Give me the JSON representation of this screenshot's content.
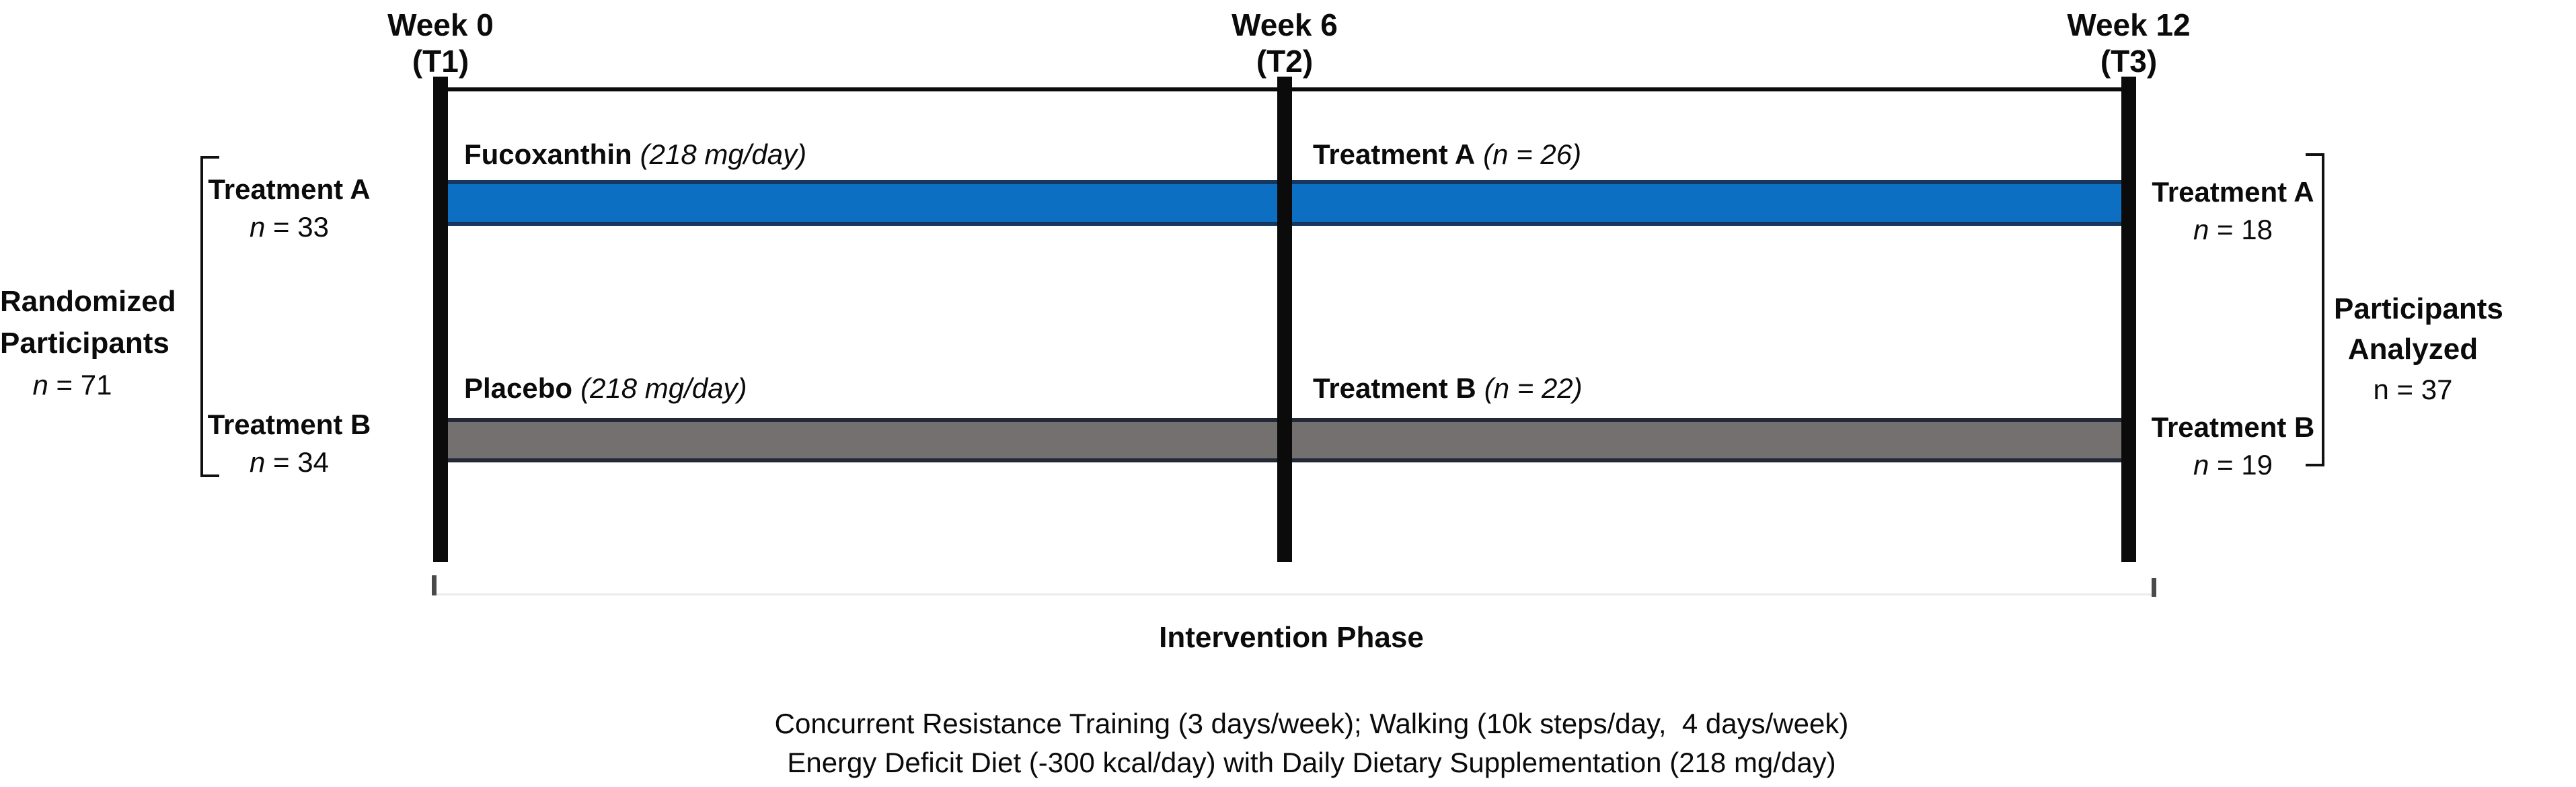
{
  "timepoints": [
    {
      "week": "Week 0",
      "timepoint": "(T1)"
    },
    {
      "week": "Week 6",
      "timepoint": "(T2)"
    },
    {
      "week": "Week 12",
      "timepoint": "(T3)"
    }
  ],
  "left_group": {
    "line1": "Randomized",
    "line2": "Participants",
    "n_italic": "n",
    "n_rest": " = 71"
  },
  "right_group": {
    "line1": "Participants",
    "line2": "Analyzed",
    "n_text": "n = 37"
  },
  "arm_a": {
    "start": {
      "label": "Treatment A",
      "n_italic": "n",
      "n_rest": " = 33"
    },
    "bar_label": {
      "name": "Fucoxanthin",
      "dose": "(218 mg/day)"
    },
    "mid_label": {
      "name": "Treatment A",
      "n": "(n = 26)"
    },
    "end": {
      "label": "Treatment A",
      "n_italic": "n",
      "n_rest": " = 18"
    },
    "color": {
      "fill": "#0D6FC2",
      "border": "#17375E"
    }
  },
  "arm_b": {
    "start": {
      "label": "Treatment B",
      "n_italic": "n",
      "n_rest": " = 34"
    },
    "bar_label": {
      "name": "Placebo",
      "dose": "(218 mg/day)"
    },
    "mid_label": {
      "name": "Treatment B",
      "n": "(n = 22)"
    },
    "end": {
      "label": "Treatment B",
      "n_italic": "n",
      "n_rest": " = 19"
    },
    "color": {
      "fill": "#757070",
      "border": "#222835"
    }
  },
  "axis": {
    "phase_label": "Intervention Phase"
  },
  "caption": {
    "line1": "Concurrent Resistance Training (3 days/week); Walking (10k steps/day,  4 days/week)",
    "line2": "Energy Deficit Diet (-300 kcal/day) with Daily Dietary Supplementation (218 mg/day)"
  }
}
